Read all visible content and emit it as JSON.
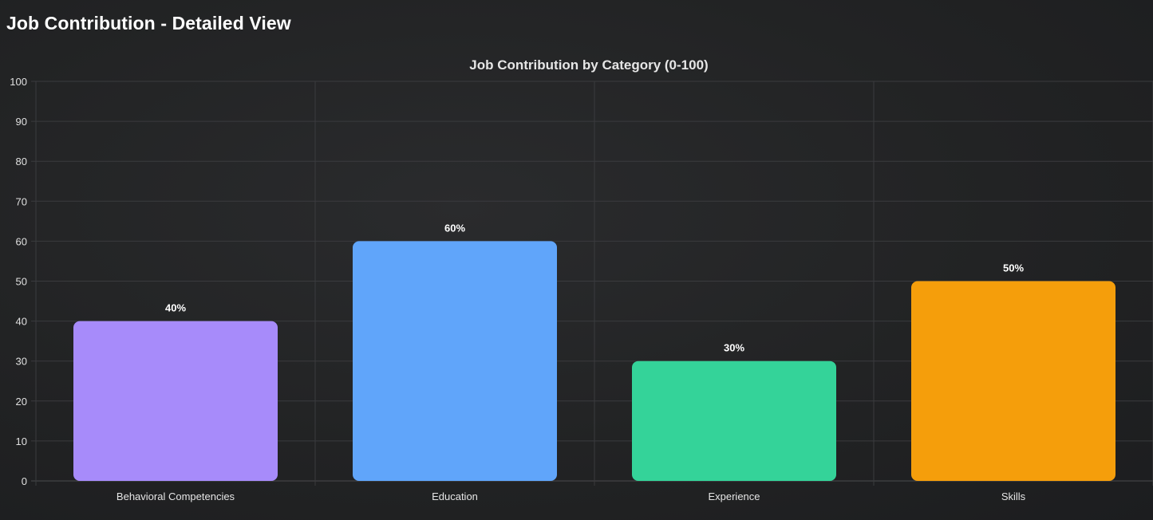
{
  "page": {
    "title": "Job Contribution - Detailed View"
  },
  "chart_data": {
    "type": "bar",
    "title": "Job Contribution by Category (0-100)",
    "categories": [
      "Behavioral Competencies",
      "Education",
      "Experience",
      "Skills"
    ],
    "values": [
      40,
      60,
      30,
      50
    ],
    "data_labels": [
      "40%",
      "60%",
      "30%",
      "50%"
    ],
    "colors": [
      "#a78bfa",
      "#60a5fa",
      "#34d399",
      "#f59e0b"
    ],
    "ylim": [
      0,
      100
    ],
    "yticks": [
      0,
      10,
      20,
      30,
      40,
      50,
      60,
      70,
      80,
      90,
      100
    ],
    "xlabel": "",
    "ylabel": "",
    "grid": true,
    "legend": "none"
  }
}
